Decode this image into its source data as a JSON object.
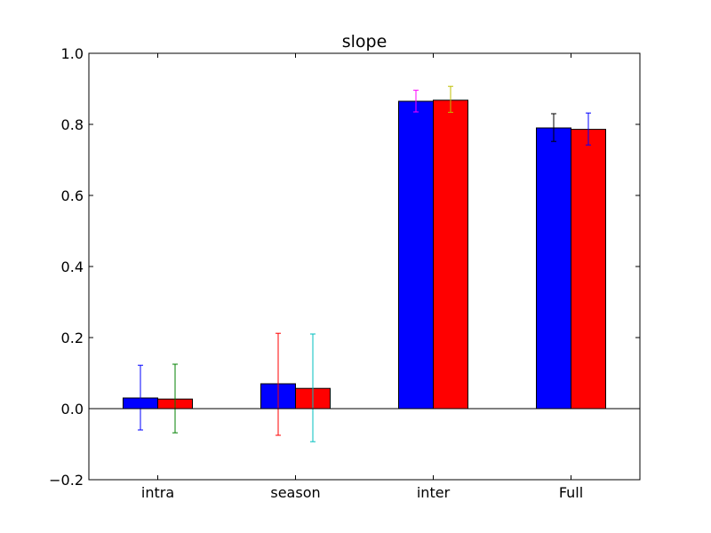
{
  "chart_data": {
    "type": "bar",
    "title": "slope",
    "xlabel": "",
    "ylabel": "",
    "categories": [
      "intra",
      "season",
      "inter",
      "Full"
    ],
    "ylim": [
      -0.2,
      1.0
    ],
    "yticks": [
      -0.2,
      0.0,
      0.2,
      0.4,
      0.6,
      0.8,
      1.0
    ],
    "ytick_labels": [
      "−0.2",
      "0.0",
      "0.2",
      "0.4",
      "0.6",
      "0.8",
      "1.0"
    ],
    "zero_line": true,
    "grid": false,
    "series": [
      {
        "color": "#0000ff",
        "values": [
          0.03,
          0.07,
          0.865,
          0.79
        ],
        "err_low": [
          -0.06,
          -0.075,
          0.835,
          0.752
        ],
        "err_high": [
          0.122,
          0.212,
          0.896,
          0.83
        ],
        "err_colors": [
          "#0000ff",
          "#ff0000",
          "#ff00ff",
          "#000000"
        ]
      },
      {
        "color": "#ff0000",
        "values": [
          0.027,
          0.057,
          0.868,
          0.786
        ],
        "err_low": [
          -0.068,
          -0.093,
          0.834,
          0.742
        ],
        "err_high": [
          0.125,
          0.21,
          0.907,
          0.832
        ],
        "err_colors": [
          "#008000",
          "#00bfbf",
          "#bfbf00",
          "#0000ff"
        ]
      }
    ]
  }
}
